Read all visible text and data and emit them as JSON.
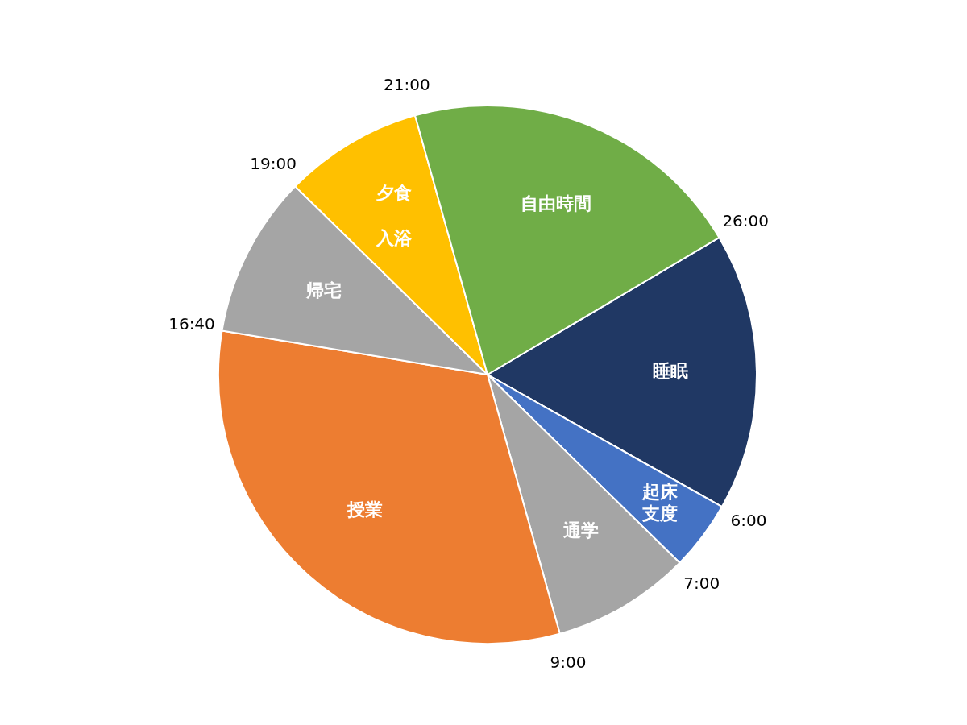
{
  "chart_data": {
    "type": "pie",
    "categories": [
      "睡眠",
      "起床支度",
      "通学",
      "授業",
      "帰宅",
      "夕食入浴",
      "自由時間"
    ],
    "values": [
      16.67,
      4.17,
      8.33,
      31.94,
      9.72,
      8.33,
      20.84
    ],
    "colors": [
      "#203864",
      "#4472c4",
      "#a5a5a5",
      "#ed7d31",
      "#a5a5a5",
      "#ffc000",
      "#70ad47"
    ],
    "annotations": [
      "26:00",
      "6:00",
      "7:00",
      "9:00",
      "16:40",
      "19:00",
      "21:00"
    ],
    "legend": false
  }
}
